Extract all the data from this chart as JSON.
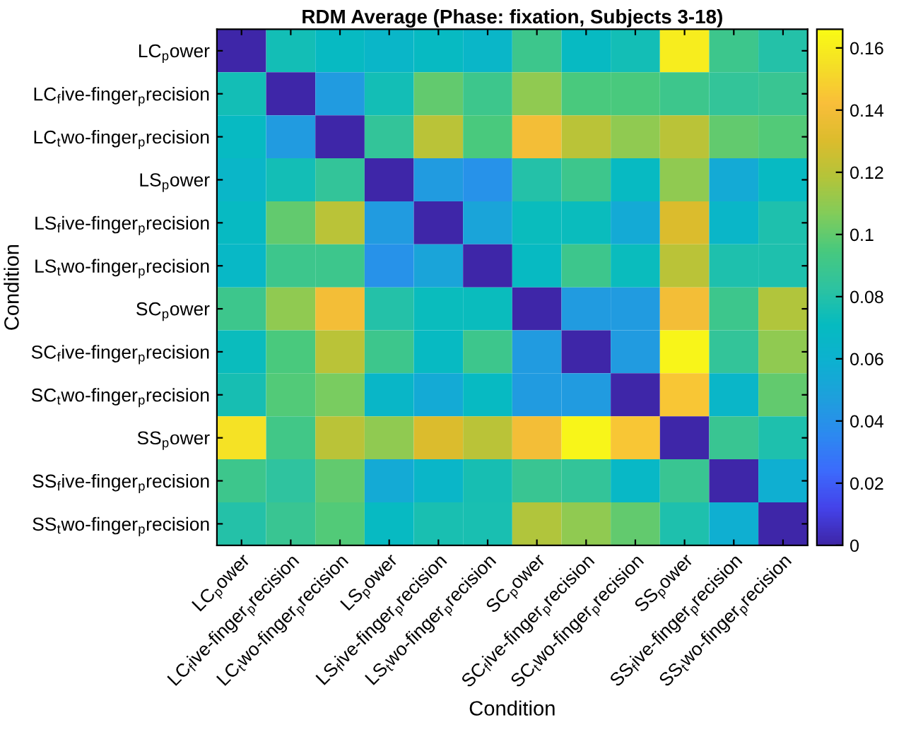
{
  "chart_data": {
    "type": "heatmap",
    "title": "RDM Average (Phase: fixation, Subjects 3-18)",
    "xlabel": "Condition",
    "ylabel": "Condition",
    "categories": [
      "LC$_{p}$ower",
      "LC$_{f}$ive-finger$_{p}$recision",
      "LC$_{t}$wo-finger$_{p}$recision",
      "LS$_{p}$ower",
      "LS$_{f}$ive-finger$_{p}$recision",
      "LS$_{t}$wo-finger$_{p}$recision",
      "SC$_{p}$ower",
      "SC$_{f}$ive-finger$_{p}$recision",
      "SC$_{t}$wo-finger$_{p}$recision",
      "SS$_{p}$ower",
      "SS$_{f}$ive-finger$_{p}$recision",
      "SS$_{t}$wo-finger$_{p}$recision"
    ],
    "y_categories": [
      "LC$_{p}$ower",
      "LC$_{f}$ive-finger$_{p}$recision",
      "LC$_{t}$wo-finger$_{p}$recision",
      "LS$_{p}$ower",
      "LS$_{f}$ive-finger$_{p}$recision",
      "LS$_{t}$wo-finger$_{p}$recision",
      "SC$_{p}$ower",
      "SC$_{f}$ive-finger$_{p}$recision",
      "SC$_{t}$wo-finger$_{p}$recision",
      "SS$_{p}$ower",
      "SS$_{f}$ive-finger$_{p}$recision",
      "SS$_{t}$wo-finger$_{p}$recision"
    ],
    "cells": [
      [
        0,
        0.075,
        0.07,
        0.065,
        0.07,
        0.065,
        0.09,
        0.07,
        0.075,
        0.16,
        0.09,
        0.08
      ],
      [
        0.075,
        0,
        0.045,
        0.075,
        0.1,
        0.09,
        0.11,
        0.095,
        0.095,
        0.09,
        0.085,
        0.088
      ],
      [
        0.07,
        0.045,
        0,
        0.085,
        0.12,
        0.095,
        0.14,
        0.12,
        0.11,
        0.12,
        0.1,
        0.097
      ],
      [
        0.065,
        0.075,
        0.085,
        0,
        0.045,
        0.04,
        0.08,
        0.09,
        0.07,
        0.11,
        0.055,
        0.07
      ],
      [
        0.07,
        0.1,
        0.12,
        0.045,
        0,
        0.05,
        0.072,
        0.072,
        0.055,
        0.13,
        0.065,
        0.078
      ],
      [
        0.067,
        0.09,
        0.09,
        0.04,
        0.05,
        0,
        0.07,
        0.09,
        0.072,
        0.12,
        0.078,
        0.078
      ],
      [
        0.09,
        0.11,
        0.14,
        0.08,
        0.072,
        0.072,
        0,
        0.045,
        0.045,
        0.14,
        0.09,
        0.118
      ],
      [
        0.072,
        0.095,
        0.12,
        0.09,
        0.07,
        0.09,
        0.045,
        0,
        0.045,
        0.163,
        0.085,
        0.11
      ],
      [
        0.076,
        0.097,
        0.105,
        0.066,
        0.055,
        0.07,
        0.045,
        0.045,
        0,
        0.145,
        0.065,
        0.1
      ],
      [
        0.155,
        0.092,
        0.12,
        0.11,
        0.13,
        0.12,
        0.14,
        0.163,
        0.145,
        0,
        0.088,
        0.078
      ],
      [
        0.09,
        0.083,
        0.1,
        0.055,
        0.065,
        0.076,
        0.088,
        0.085,
        0.067,
        0.088,
        0,
        0.058
      ],
      [
        0.08,
        0.088,
        0.097,
        0.07,
        0.077,
        0.077,
        0.118,
        0.11,
        0.1,
        0.078,
        0.058,
        0
      ]
    ],
    "clim": [
      0,
      0.166
    ],
    "cticks": [
      0,
      0.02,
      0.04,
      0.06,
      0.08,
      0.1,
      0.12,
      0.14,
      0.16
    ]
  }
}
